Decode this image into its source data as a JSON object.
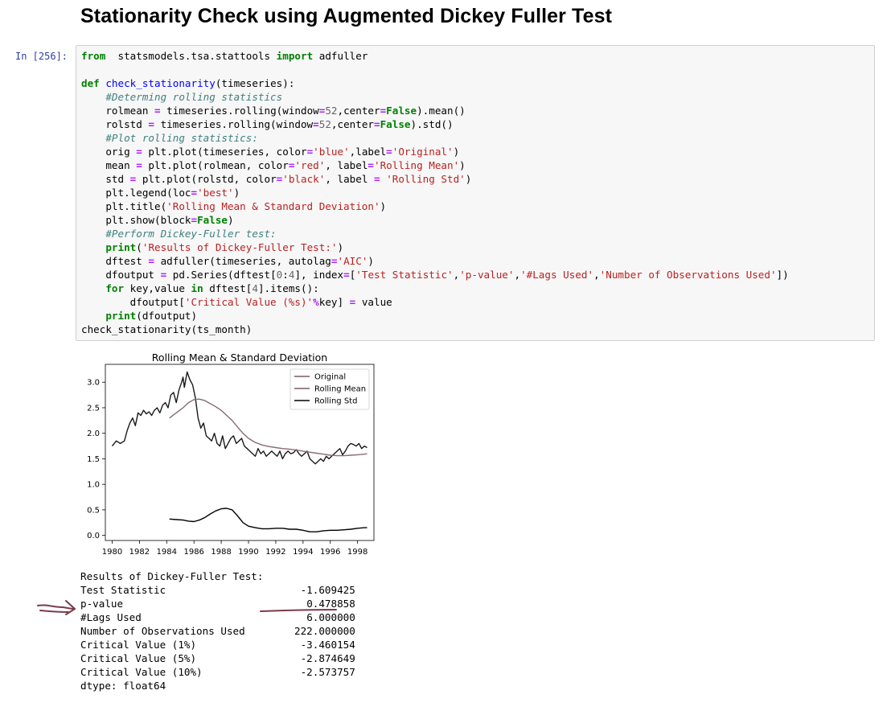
{
  "heading": "Stationarity Check using Augmented Dickey Fuller Test",
  "cell": {
    "prompt": "In [256]:",
    "code_lines": [
      [
        [
          "kw",
          "from"
        ],
        [
          "",
          "  statsmodels.tsa.stattools "
        ],
        [
          "kw",
          "import"
        ],
        [
          "",
          " adfuller"
        ]
      ],
      [],
      [
        [
          "kw",
          "def"
        ],
        [
          "",
          " "
        ],
        [
          "fn",
          "check_stationarity"
        ],
        [
          "",
          "(timeseries):"
        ]
      ],
      [
        [
          "",
          "    "
        ],
        [
          "cm",
          "#Determing rolling statistics"
        ]
      ],
      [
        [
          "",
          "    rolmean "
        ],
        [
          "op",
          "="
        ],
        [
          "",
          " timeseries.rolling(window"
        ],
        [
          "op",
          "="
        ],
        [
          "nm",
          "52"
        ],
        [
          "",
          ",center"
        ],
        [
          "op",
          "="
        ],
        [
          "kw",
          "False"
        ],
        [
          "",
          ").mean()"
        ]
      ],
      [
        [
          "",
          "    rolstd "
        ],
        [
          "op",
          "="
        ],
        [
          "",
          " timeseries.rolling(window"
        ],
        [
          "op",
          "="
        ],
        [
          "nm",
          "52"
        ],
        [
          "",
          ",center"
        ],
        [
          "op",
          "="
        ],
        [
          "kw",
          "False"
        ],
        [
          "",
          ").std()"
        ]
      ],
      [
        [
          "",
          "    "
        ],
        [
          "cm",
          "#Plot rolling statistics:"
        ]
      ],
      [
        [
          "",
          "    orig "
        ],
        [
          "op",
          "="
        ],
        [
          "",
          " plt.plot(timeseries, color"
        ],
        [
          "op",
          "="
        ],
        [
          "st",
          "'blue'"
        ],
        [
          "",
          ",label"
        ],
        [
          "op",
          "="
        ],
        [
          "st",
          "'Original'"
        ],
        [
          "",
          ")"
        ]
      ],
      [
        [
          "",
          "    mean "
        ],
        [
          "op",
          "="
        ],
        [
          "",
          " plt.plot(rolmean, color"
        ],
        [
          "op",
          "="
        ],
        [
          "st",
          "'red'"
        ],
        [
          "",
          ", label"
        ],
        [
          "op",
          "="
        ],
        [
          "st",
          "'Rolling Mean'"
        ],
        [
          "",
          ")"
        ]
      ],
      [
        [
          "",
          "    std "
        ],
        [
          "op",
          "="
        ],
        [
          "",
          " plt.plot(rolstd, color"
        ],
        [
          "op",
          "="
        ],
        [
          "st",
          "'black'"
        ],
        [
          "",
          ", label "
        ],
        [
          "op",
          "="
        ],
        [
          "",
          " "
        ],
        [
          "st",
          "'Rolling Std'"
        ],
        [
          "",
          ")"
        ]
      ],
      [
        [
          "",
          "    plt.legend(loc"
        ],
        [
          "op",
          "="
        ],
        [
          "st",
          "'best'"
        ],
        [
          "",
          ")"
        ]
      ],
      [
        [
          "",
          "    plt.title("
        ],
        [
          "st",
          "'Rolling Mean & Standard Deviation'"
        ],
        [
          "",
          ")"
        ]
      ],
      [
        [
          "",
          "    plt.show(block"
        ],
        [
          "op",
          "="
        ],
        [
          "kw",
          "False"
        ],
        [
          "",
          ")"
        ]
      ],
      [
        [
          "",
          "    "
        ],
        [
          "cm",
          "#Perform Dickey-Fuller test:"
        ]
      ],
      [
        [
          "",
          "    "
        ],
        [
          "kw",
          "print"
        ],
        [
          "",
          "("
        ],
        [
          "st",
          "'Results of Dickey-Fuller Test:'"
        ],
        [
          "",
          ")"
        ]
      ],
      [
        [
          "",
          "    dftest "
        ],
        [
          "op",
          "="
        ],
        [
          "",
          " adfuller(timeseries, autolag"
        ],
        [
          "op",
          "="
        ],
        [
          "st",
          "'AIC'"
        ],
        [
          "",
          ")"
        ]
      ],
      [
        [
          "",
          "    dfoutput "
        ],
        [
          "op",
          "="
        ],
        [
          "",
          " pd.Series(dftest["
        ],
        [
          "nm",
          "0"
        ],
        [
          "",
          ":"
        ],
        [
          "nm",
          "4"
        ],
        [
          "",
          "], index"
        ],
        [
          "op",
          "="
        ],
        [
          "",
          "["
        ],
        [
          "st",
          "'Test Statistic'"
        ],
        [
          "",
          ","
        ],
        [
          "st",
          "'p-value'"
        ],
        [
          "",
          ","
        ],
        [
          "st",
          "'#Lags Used'"
        ],
        [
          "",
          ","
        ],
        [
          "st",
          "'Number of Observations Used'"
        ],
        [
          "",
          "])"
        ]
      ],
      [
        [
          "",
          "    "
        ],
        [
          "kw",
          "for"
        ],
        [
          "",
          " key,value "
        ],
        [
          "kw",
          "in"
        ],
        [
          "",
          " dftest["
        ],
        [
          "nm",
          "4"
        ],
        [
          "",
          "].items():"
        ]
      ],
      [
        [
          "",
          "        dfoutput["
        ],
        [
          "st",
          "'Critical Value (%s)'"
        ],
        [
          "op",
          "%"
        ],
        [
          "",
          "key] "
        ],
        [
          "op",
          "="
        ],
        [
          "",
          " value"
        ]
      ],
      [
        [
          "",
          "    "
        ],
        [
          "kw",
          "print"
        ],
        [
          "",
          "(dfoutput)"
        ]
      ],
      [
        [
          "",
          "check_stationarity(ts_month)"
        ]
      ]
    ]
  },
  "chart_data": {
    "type": "line",
    "title": "Rolling Mean & Standard Deviation",
    "xlim": [
      1979.5,
      1999.2
    ],
    "ylim": [
      -0.1,
      3.35
    ],
    "x_ticks": [
      "1980",
      "1982",
      "1984",
      "1986",
      "1988",
      "1990",
      "1992",
      "1994",
      "1996",
      "1998"
    ],
    "y_ticks": [
      "0.0",
      "0.5",
      "1.0",
      "1.5",
      "2.0",
      "2.5",
      "3.0"
    ],
    "legend_position": "top-right",
    "series": [
      {
        "name": "Original",
        "color": "#1a1a1a",
        "legend_color": "#7a5a66",
        "x": [
          1980.0,
          1980.3,
          1980.6,
          1980.9,
          1981.1,
          1981.3,
          1981.5,
          1981.7,
          1981.9,
          1982.1,
          1982.3,
          1982.5,
          1982.7,
          1982.9,
          1983.1,
          1983.3,
          1983.5,
          1983.7,
          1983.9,
          1984.1,
          1984.3,
          1984.5,
          1984.7,
          1984.9,
          1985.1,
          1985.2,
          1985.3,
          1985.5,
          1985.7,
          1985.9,
          1986.1,
          1986.3,
          1986.5,
          1986.7,
          1986.9,
          1987.1,
          1987.3,
          1987.5,
          1987.7,
          1987.9,
          1988.1,
          1988.3,
          1988.5,
          1988.7,
          1988.9,
          1989.1,
          1989.3,
          1989.5,
          1989.7,
          1989.9,
          1990.1,
          1990.3,
          1990.5,
          1990.7,
          1990.9,
          1991.1,
          1991.3,
          1991.5,
          1991.7,
          1991.9,
          1992.1,
          1992.3,
          1992.5,
          1992.7,
          1992.9,
          1993.1,
          1993.3,
          1993.5,
          1993.7,
          1993.9,
          1994.1,
          1994.3,
          1994.5,
          1994.7,
          1994.9,
          1995.1,
          1995.3,
          1995.5,
          1995.7,
          1995.9,
          1996.1,
          1996.3,
          1996.5,
          1996.7,
          1996.9,
          1997.1,
          1997.3,
          1997.5,
          1997.7,
          1997.9,
          1998.1,
          1998.3,
          1998.5,
          1998.7
        ],
        "y": [
          1.75,
          1.85,
          1.8,
          1.85,
          2.05,
          2.2,
          2.3,
          2.15,
          2.4,
          2.35,
          2.45,
          2.38,
          2.42,
          2.35,
          2.45,
          2.5,
          2.4,
          2.55,
          2.6,
          2.5,
          2.75,
          2.8,
          2.6,
          2.85,
          3.0,
          3.1,
          2.9,
          3.2,
          3.05,
          2.95,
          2.7,
          2.3,
          2.1,
          2.2,
          1.95,
          1.9,
          1.85,
          2.0,
          1.8,
          1.75,
          1.95,
          1.7,
          1.8,
          1.9,
          1.95,
          1.8,
          1.85,
          1.9,
          1.75,
          1.7,
          1.65,
          1.6,
          1.55,
          1.7,
          1.6,
          1.65,
          1.55,
          1.6,
          1.65,
          1.6,
          1.55,
          1.65,
          1.5,
          1.6,
          1.65,
          1.6,
          1.62,
          1.68,
          1.6,
          1.55,
          1.6,
          1.65,
          1.5,
          1.45,
          1.4,
          1.45,
          1.5,
          1.45,
          1.55,
          1.5,
          1.55,
          1.6,
          1.65,
          1.7,
          1.58,
          1.65,
          1.75,
          1.8,
          1.78,
          1.75,
          1.8,
          1.7,
          1.75,
          1.72
        ]
      },
      {
        "name": "Rolling Mean",
        "color": "#8a6a78",
        "legend_color": "#7a5a66",
        "x": [
          1984.2,
          1984.7,
          1985.2,
          1985.6,
          1986.0,
          1986.4,
          1986.8,
          1987.2,
          1987.6,
          1988.0,
          1988.4,
          1988.8,
          1989.2,
          1989.6,
          1990.0,
          1990.5,
          1991.0,
          1991.5,
          1992.0,
          1992.5,
          1993.0,
          1993.5,
          1994.0,
          1994.5,
          1995.0,
          1995.5,
          1996.0,
          1996.5,
          1997.0,
          1997.5,
          1998.0,
          1998.5,
          1998.7
        ],
        "y": [
          2.3,
          2.4,
          2.5,
          2.6,
          2.66,
          2.67,
          2.64,
          2.58,
          2.52,
          2.45,
          2.35,
          2.25,
          2.12,
          2.0,
          1.9,
          1.82,
          1.77,
          1.74,
          1.72,
          1.7,
          1.69,
          1.67,
          1.65,
          1.63,
          1.61,
          1.59,
          1.57,
          1.56,
          1.56,
          1.57,
          1.58,
          1.59,
          1.6
        ]
      },
      {
        "name": "Rolling Std",
        "color": "#000000",
        "legend_color": "#000000",
        "x": [
          1984.2,
          1984.7,
          1985.2,
          1985.6,
          1986.0,
          1986.4,
          1986.8,
          1987.2,
          1987.6,
          1988.0,
          1988.4,
          1988.8,
          1989.2,
          1989.6,
          1990.0,
          1990.5,
          1991.0,
          1991.5,
          1992.0,
          1992.5,
          1993.0,
          1993.5,
          1994.0,
          1994.5,
          1995.0,
          1995.5,
          1996.0,
          1996.5,
          1997.0,
          1997.5,
          1998.0,
          1998.5,
          1998.7
        ],
        "y": [
          0.32,
          0.31,
          0.3,
          0.28,
          0.27,
          0.3,
          0.35,
          0.42,
          0.48,
          0.52,
          0.53,
          0.5,
          0.38,
          0.25,
          0.18,
          0.15,
          0.13,
          0.13,
          0.14,
          0.14,
          0.12,
          0.12,
          0.1,
          0.07,
          0.07,
          0.09,
          0.1,
          0.1,
          0.11,
          0.12,
          0.14,
          0.15,
          0.15
        ]
      }
    ]
  },
  "output": {
    "header": "Results of Dickey-Fuller Test:",
    "rows": [
      {
        "label": "Test Statistic",
        "value": "-1.609425"
      },
      {
        "label": "p-value",
        "value": "0.478858"
      },
      {
        "label": "#Lags Used",
        "value": "6.000000"
      },
      {
        "label": "Number of Observations Used",
        "value": "222.000000"
      },
      {
        "label": "Critical Value (1%)",
        "value": "-3.460154"
      },
      {
        "label": "Critical Value (5%)",
        "value": "-2.874649"
      },
      {
        "label": "Critical Value (10%)",
        "value": "-2.573757"
      }
    ],
    "dtype": "dtype: float64"
  },
  "colors": {
    "annotation": "#7a3a4a",
    "code_bg": "#f7f7f7",
    "prompt": "#303f9f"
  },
  "icons": {
    "annotation_arrow": "hand-drawn-arrow-icon",
    "annotation_underline": "hand-drawn-underline"
  }
}
